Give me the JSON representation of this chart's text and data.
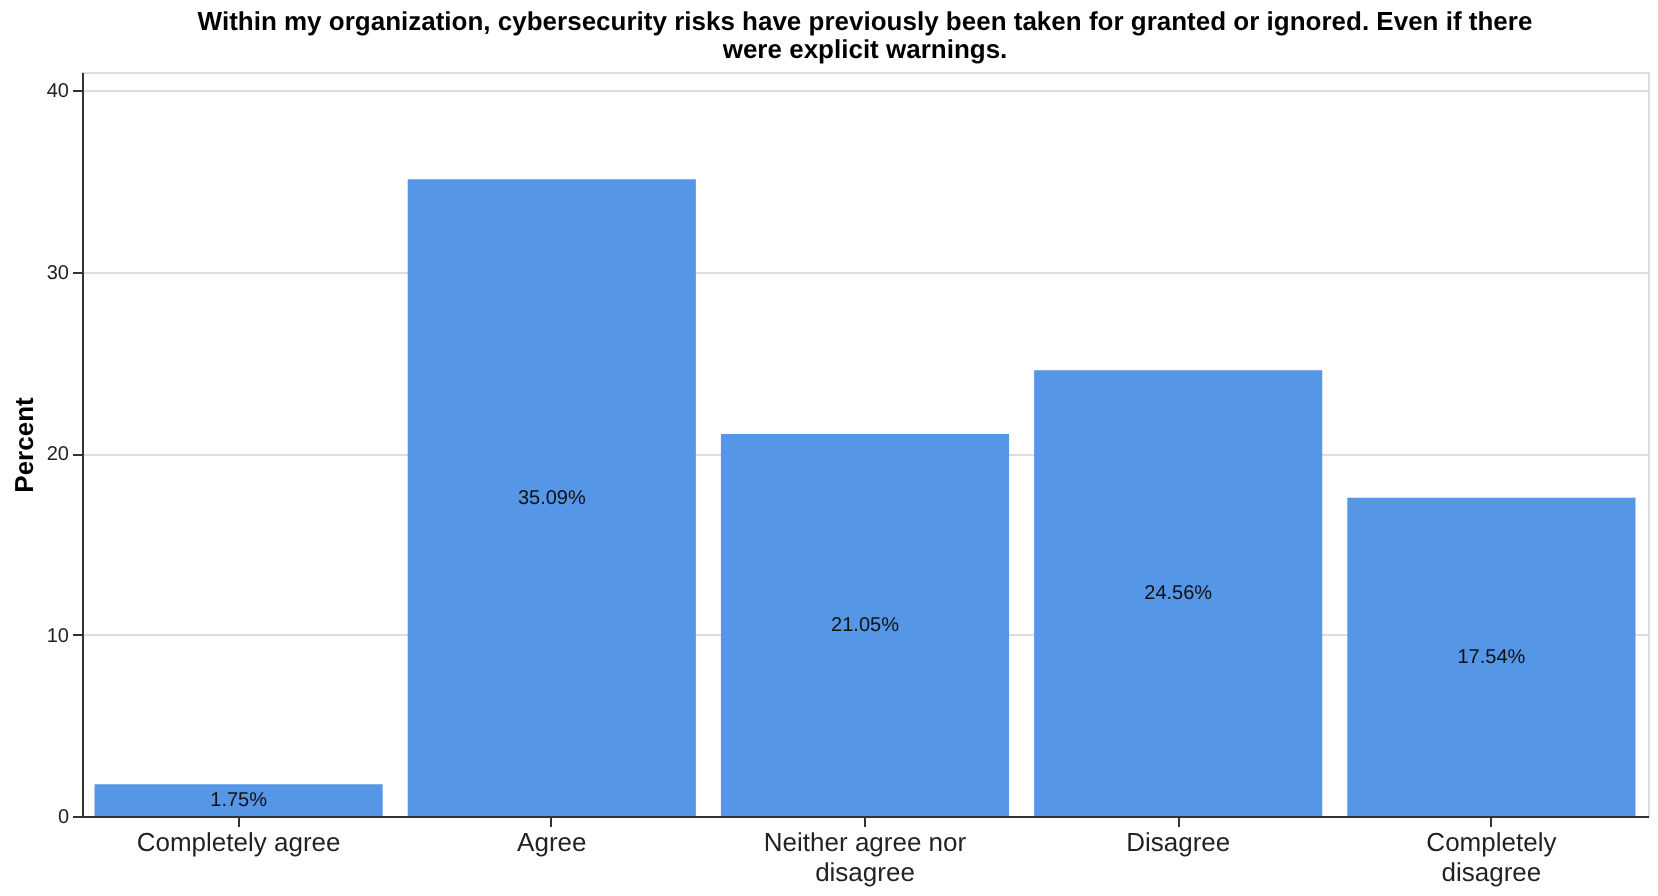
{
  "chart_data": {
    "type": "bar",
    "title": "Within my organization, cybersecurity risks have previously been taken for granted or ignored. Even if there were explicit warnings.",
    "categories": [
      "Completely agree",
      "Agree",
      "Neither agree nor disagree",
      "Disagree",
      "Completely disagree"
    ],
    "values": [
      1.75,
      35.09,
      21.05,
      24.56,
      17.54
    ],
    "value_labels": [
      "1.75%",
      "35.09%",
      "21.05%",
      "24.56%",
      "17.54%"
    ],
    "color": "#5596e6",
    "ylabel": "Percent",
    "ylim": [
      0,
      41
    ],
    "yticks": [
      0,
      10,
      20,
      30,
      40
    ],
    "grid": "y"
  }
}
